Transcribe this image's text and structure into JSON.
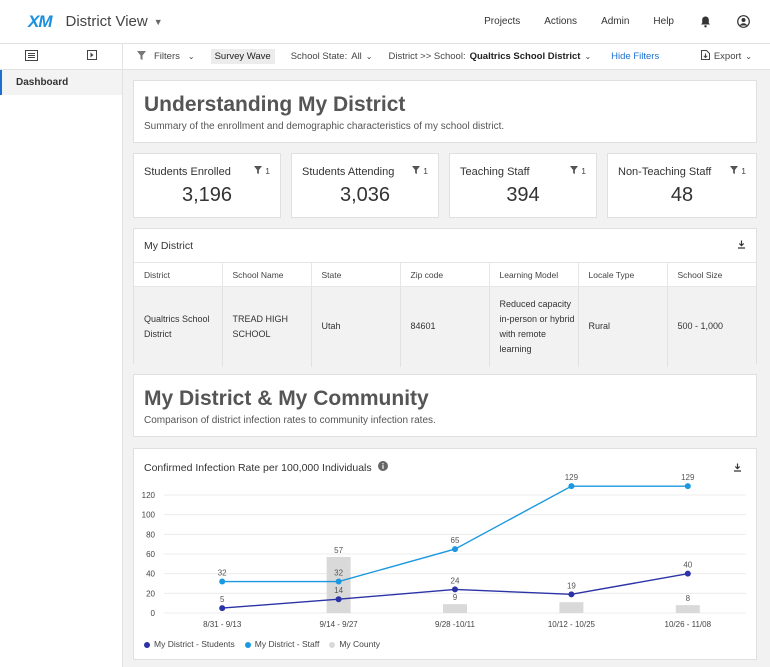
{
  "header": {
    "logo": "XM",
    "title": "District View",
    "nav": [
      "Projects",
      "Actions",
      "Admin",
      "Help"
    ]
  },
  "filterbar": {
    "filters_label": "Filters",
    "survey_wave": "Survey Wave",
    "school_state_label": "School State:",
    "school_state_value": "All",
    "district_label": "District >> School:",
    "district_value": "Qualtrics School District",
    "hide_filters": "Hide Filters",
    "export": "Export"
  },
  "sidebar": {
    "items": [
      {
        "label": "Dashboard"
      }
    ]
  },
  "section1": {
    "title": "Understanding My District",
    "subtitle": "Summary of the enrollment and demographic characteristics of my school district."
  },
  "metrics": [
    {
      "title": "Students Enrolled",
      "filter_count": "1",
      "value": "3,196"
    },
    {
      "title": "Students Attending",
      "filter_count": "1",
      "value": "3,036"
    },
    {
      "title": "Teaching Staff",
      "filter_count": "1",
      "value": "394"
    },
    {
      "title": "Non-Teaching Staff",
      "filter_count": "1",
      "value": "48"
    }
  ],
  "district_table": {
    "title": "My District",
    "columns": [
      "District",
      "School Name",
      "State",
      "Zip code",
      "Learning Model",
      "Locale Type",
      "School Size"
    ],
    "row": [
      "Qualtrics School District",
      "TREAD HIGH SCHOOL",
      "Utah",
      "84601",
      "Reduced capacity in-person or hybrid with remote learning",
      "Rural",
      "500 - 1,000"
    ]
  },
  "section2": {
    "title": "My District & My Community",
    "subtitle": "Comparison of district infection rates to community infection rates."
  },
  "chart_card": {
    "title": "Confirmed Infection Rate per 100,000 Individuals"
  },
  "chart_data": {
    "type": "line",
    "title": "Confirmed Infection Rate per 100,000 Individuals",
    "categories": [
      "8/31 - 9/13",
      "9/14 - 9/27",
      "9/28 -10/11",
      "10/12 - 10/25",
      "10/26 - 11/08"
    ],
    "ylim": [
      0,
      120
    ],
    "yticks": [
      0,
      20,
      40,
      60,
      80,
      100,
      120
    ],
    "grid": true,
    "legend_position": "bottom-left",
    "series": [
      {
        "name": "My District - Students",
        "type": "line",
        "color": "#2b33a6",
        "values": [
          5,
          14,
          24,
          19,
          40
        ],
        "labels": [
          "5",
          "14",
          "24",
          "19",
          "40"
        ]
      },
      {
        "name": "My District - Staff",
        "type": "line",
        "color": "#1b98e0",
        "values": [
          32,
          32,
          65,
          129,
          129
        ],
        "labels": [
          "32",
          "32",
          "65",
          "129",
          "129"
        ]
      },
      {
        "name": "My County",
        "type": "bar",
        "color": "#d9d9d9",
        "values": [
          0,
          57,
          9,
          11,
          8
        ],
        "labels": [
          "",
          "57",
          "9",
          "",
          "8"
        ]
      }
    ]
  }
}
